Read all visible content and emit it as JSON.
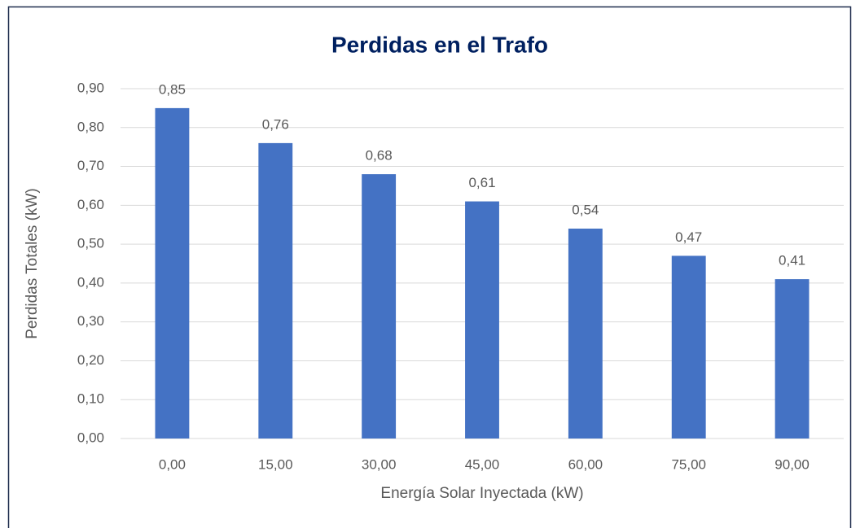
{
  "chart_data": {
    "type": "bar",
    "title": "Perdidas en el Trafo",
    "x_label": "Energía Solar Inyectada (kW)",
    "y_label": "Perdidas Totales (kW)",
    "categories": [
      "0,00",
      "15,00",
      "30,00",
      "45,00",
      "60,00",
      "75,00",
      "90,00"
    ],
    "values": [
      0.85,
      0.76,
      0.68,
      0.61,
      0.54,
      0.47,
      0.41
    ],
    "value_labels": [
      "0,85",
      "0,76",
      "0,68",
      "0,61",
      "0,54",
      "0,47",
      "0,41"
    ],
    "color": "#4472c4",
    "ylim": [
      0,
      0.9
    ],
    "yticks": [
      {
        "value": 0,
        "label": "0,00"
      },
      {
        "value": 0.1,
        "label": "0,10"
      },
      {
        "value": 0.2,
        "label": "0,20"
      },
      {
        "value": 0.3,
        "label": "0,30"
      },
      {
        "value": 0.4,
        "label": "0,40"
      },
      {
        "value": 0.5,
        "label": "0,50"
      },
      {
        "value": 0.6,
        "label": "0,60"
      },
      {
        "value": 0.7,
        "label": "0,70"
      },
      {
        "value": 0.8,
        "label": "0,80"
      },
      {
        "value": 0.9,
        "label": "0,90"
      }
    ],
    "grid": true
  }
}
